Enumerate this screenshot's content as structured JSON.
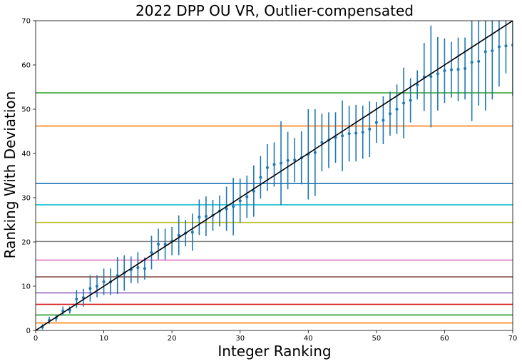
{
  "chart_data": {
    "type": "scatter",
    "title": "2022 DPP OU VR, Outlier-compensated",
    "xlabel": "Integer Ranking",
    "ylabel": "Ranking With Deviation",
    "xlim": [
      0,
      70
    ],
    "ylim": [
      0,
      70
    ],
    "xticks": [
      0,
      10,
      20,
      30,
      40,
      50,
      60,
      70
    ],
    "yticks": [
      0,
      10,
      20,
      30,
      40,
      50,
      60,
      70
    ],
    "grid": false,
    "point_color": "#1f77b4",
    "series": [
      {
        "x": [
          1,
          2,
          3,
          4,
          5,
          6,
          7,
          8,
          9,
          10,
          11,
          12,
          13,
          14,
          15,
          16,
          17,
          18,
          19,
          20,
          21,
          22,
          23,
          24,
          25,
          26,
          27,
          28,
          29,
          30,
          31,
          32,
          33,
          34,
          35,
          36,
          37,
          38,
          39,
          40,
          41,
          42,
          43,
          44,
          45,
          46,
          47,
          48,
          49,
          50,
          51,
          52,
          53,
          54,
          55,
          56,
          57,
          58,
          59,
          60,
          61,
          62,
          63,
          64,
          65,
          66,
          67,
          68,
          69,
          70
        ],
        "y": [
          0.8,
          2.3,
          2.8,
          4.4,
          4.6,
          7.1,
          7.4,
          9.5,
          10.0,
          11.0,
          11.0,
          12.4,
          13.0,
          13.7,
          14.2,
          14.0,
          17.6,
          19.5,
          19.5,
          20.2,
          21.5,
          22.0,
          22.2,
          25.6,
          25.8,
          26.0,
          27.0,
          27.5,
          28.0,
          29.3,
          30.2,
          31.5,
          34.6,
          36.8,
          37.5,
          37.8,
          38.4,
          38.5,
          39.0,
          39.8,
          40.2,
          42.5,
          43.0,
          43.6,
          44.0,
          44.5,
          44.6,
          44.8,
          45.5,
          47.0,
          47.5,
          49.0,
          50.0,
          51.4,
          52.0,
          55.5,
          57.3,
          57.4,
          58.0,
          58.7,
          58.9,
          59.0,
          59.2,
          60.6,
          60.8,
          63.0,
          63.2,
          64.1,
          64.3,
          64.5
        ],
        "error": [
          0.6,
          0.8,
          0.8,
          1.0,
          0.8,
          2.0,
          2.0,
          3.0,
          2.5,
          3.0,
          3.0,
          4.2,
          4.0,
          3.0,
          3.5,
          2.5,
          3.8,
          3.5,
          3.5,
          3.2,
          4.5,
          3.0,
          4.2,
          4.0,
          4.5,
          3.5,
          3.5,
          5.0,
          6.5,
          5.0,
          4.8,
          5.8,
          4.8,
          5.3,
          5.0,
          9.5,
          6.5,
          5.0,
          6.0,
          10.2,
          9.8,
          6.5,
          6.3,
          5.7,
          8.0,
          6.3,
          6.4,
          6.0,
          6.3,
          4.6,
          5.4,
          5.0,
          5.6,
          8.0,
          5.0,
          3.3,
          7.7,
          11.5,
          8.3,
          7.3,
          6.3,
          7.2,
          7.0,
          13.3,
          10.0,
          13.3,
          11.0,
          9.0,
          6.2,
          11.5
        ]
      }
    ],
    "reference_line": {
      "from": [
        0,
        0
      ],
      "to": [
        70,
        70
      ],
      "color": "#000000"
    },
    "horizontal_lines": [
      {
        "y": 53.7,
        "color": "#2ca02c"
      },
      {
        "y": 46.2,
        "color": "#ff7f0e"
      },
      {
        "y": 33.2,
        "color": "#1f77b4"
      },
      {
        "y": 28.4,
        "color": "#17becf"
      },
      {
        "y": 24.4,
        "color": "#bcbd22"
      },
      {
        "y": 20.1,
        "color": "#7f7f7f"
      },
      {
        "y": 15.9,
        "color": "#e377c2"
      },
      {
        "y": 12.1,
        "color": "#8c564b"
      },
      {
        "y": 8.5,
        "color": "#9467bd"
      },
      {
        "y": 5.9,
        "color": "#d62728"
      },
      {
        "y": 3.5,
        "color": "#2ca02c"
      },
      {
        "y": 1.7,
        "color": "#ff7f0e"
      }
    ]
  }
}
